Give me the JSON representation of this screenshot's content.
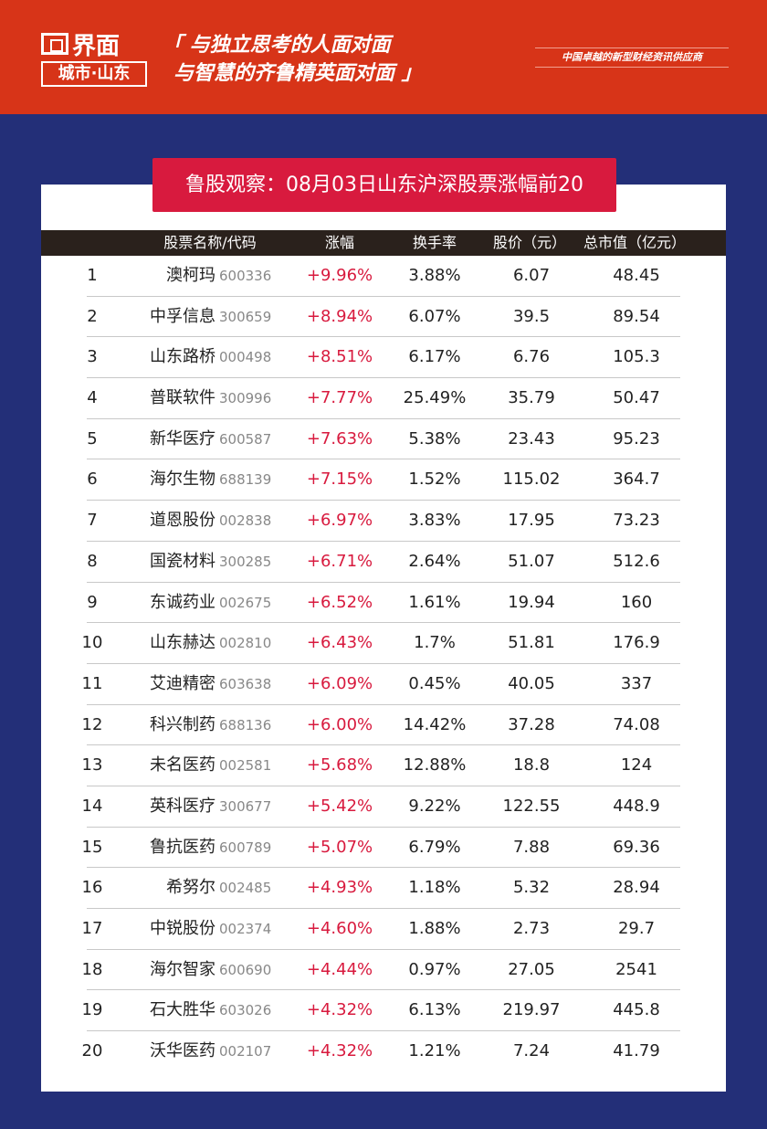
{
  "header": {
    "logo_text": "界面",
    "logo_sub": "城市·山东",
    "slogan_line1": "「 与独立思考的人面对面",
    "slogan_line2": "与智慧的齐鲁精英面对面 」",
    "tagline": "中国卓越的新型财经资讯供应商",
    "bg_color": "#d73418"
  },
  "title": "鲁股观察：08月03日山东沪深股票涨幅前20",
  "columns": {
    "name": "股票名称/代码",
    "change": "涨幅",
    "turnover": "换手率",
    "price": "股价（元）",
    "cap": "总市值（亿元）"
  },
  "rows": [
    {
      "rank": "1",
      "name": "澳柯玛",
      "code": "600336",
      "change": "+9.96%",
      "turnover": "3.88%",
      "price": "6.07",
      "cap": "48.45"
    },
    {
      "rank": "2",
      "name": "中孚信息",
      "code": "300659",
      "change": "+8.94%",
      "turnover": "6.07%",
      "price": "39.5",
      "cap": "89.54"
    },
    {
      "rank": "3",
      "name": "山东路桥",
      "code": "000498",
      "change": "+8.51%",
      "turnover": "6.17%",
      "price": "6.76",
      "cap": "105.3"
    },
    {
      "rank": "4",
      "name": "普联软件",
      "code": "300996",
      "change": "+7.77%",
      "turnover": "25.49%",
      "price": "35.79",
      "cap": "50.47"
    },
    {
      "rank": "5",
      "name": "新华医疗",
      "code": "600587",
      "change": "+7.63%",
      "turnover": "5.38%",
      "price": "23.43",
      "cap": "95.23"
    },
    {
      "rank": "6",
      "name": "海尔生物",
      "code": "688139",
      "change": "+7.15%",
      "turnover": "1.52%",
      "price": "115.02",
      "cap": "364.7"
    },
    {
      "rank": "7",
      "name": "道恩股份",
      "code": "002838",
      "change": "+6.97%",
      "turnover": "3.83%",
      "price": "17.95",
      "cap": "73.23"
    },
    {
      "rank": "8",
      "name": "国瓷材料",
      "code": "300285",
      "change": "+6.71%",
      "turnover": "2.64%",
      "price": "51.07",
      "cap": "512.6"
    },
    {
      "rank": "9",
      "name": "东诚药业",
      "code": "002675",
      "change": "+6.52%",
      "turnover": "1.61%",
      "price": "19.94",
      "cap": "160"
    },
    {
      "rank": "10",
      "name": "山东赫达",
      "code": "002810",
      "change": "+6.43%",
      "turnover": "1.7%",
      "price": "51.81",
      "cap": "176.9"
    },
    {
      "rank": "11",
      "name": "艾迪精密",
      "code": "603638",
      "change": "+6.09%",
      "turnover": "0.45%",
      "price": "40.05",
      "cap": "337"
    },
    {
      "rank": "12",
      "name": "科兴制药",
      "code": "688136",
      "change": "+6.00%",
      "turnover": "14.42%",
      "price": "37.28",
      "cap": "74.08"
    },
    {
      "rank": "13",
      "name": "未名医药",
      "code": "002581",
      "change": "+5.68%",
      "turnover": "12.88%",
      "price": "18.8",
      "cap": "124"
    },
    {
      "rank": "14",
      "name": "英科医疗",
      "code": "300677",
      "change": "+5.42%",
      "turnover": "9.22%",
      "price": "122.55",
      "cap": "448.9"
    },
    {
      "rank": "15",
      "name": "鲁抗医药",
      "code": "600789",
      "change": "+5.07%",
      "turnover": "6.79%",
      "price": "7.88",
      "cap": "69.36"
    },
    {
      "rank": "16",
      "name": "希努尔",
      "code": "002485",
      "change": "+4.93%",
      "turnover": "1.18%",
      "price": "5.32",
      "cap": "28.94"
    },
    {
      "rank": "17",
      "name": "中锐股份",
      "code": "002374",
      "change": "+4.60%",
      "turnover": "1.88%",
      "price": "2.73",
      "cap": "29.7"
    },
    {
      "rank": "18",
      "name": "海尔智家",
      "code": "600690",
      "change": "+4.44%",
      "turnover": "0.97%",
      "price": "27.05",
      "cap": "2541"
    },
    {
      "rank": "19",
      "name": "石大胜华",
      "code": "603026",
      "change": "+4.32%",
      "turnover": "6.13%",
      "price": "219.97",
      "cap": "445.8"
    },
    {
      "rank": "20",
      "name": "沃华医药",
      "code": "002107",
      "change": "+4.32%",
      "turnover": "1.21%",
      "price": "7.24",
      "cap": "41.79"
    }
  ],
  "colors": {
    "accent": "#d81a3e",
    "navy": "#232f78",
    "header_row": "#2a211c"
  }
}
